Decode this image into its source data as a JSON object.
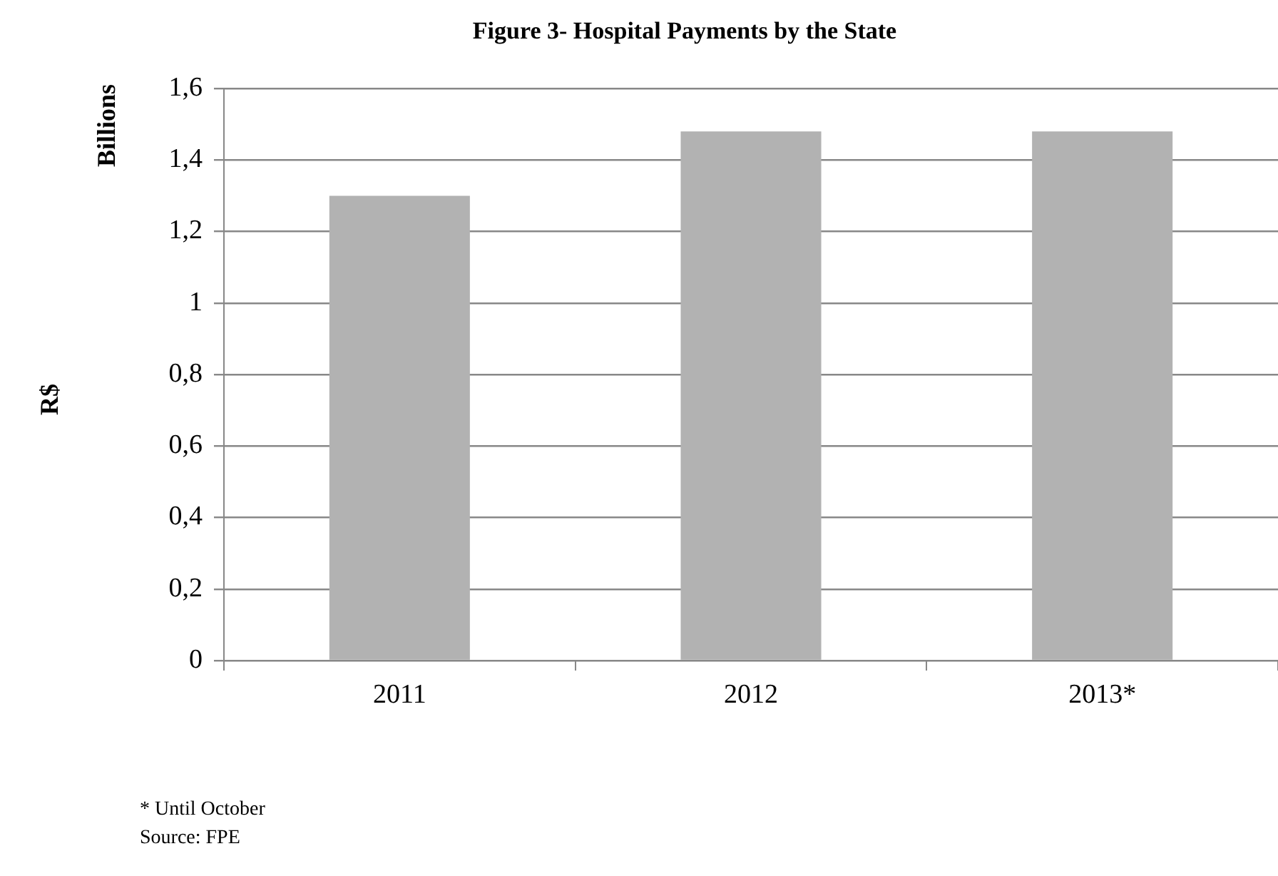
{
  "chart_data": {
    "type": "bar",
    "title": "Figure 3- Hospital Payments by the State",
    "ylabel": "R$",
    "annotations": [
      "Billions",
      "* Until October",
      "Source: FPE"
    ],
    "categories": [
      "2011",
      "2012",
      "2013*"
    ],
    "values": [
      1.3,
      1.48,
      1.48
    ],
    "color": "#b2b2b2",
    "ylim": [
      0,
      1.6
    ],
    "yticks": [
      0,
      {
        "value": 0.2,
        "label": "0,2"
      },
      {
        "value": 0.4,
        "label": "0,4"
      },
      {
        "value": 0.6,
        "label": "0,6"
      },
      {
        "value": 0.8,
        "label": "0,8"
      },
      1,
      {
        "value": 1.2,
        "label": "1,2"
      },
      {
        "value": 1.4,
        "label": "1,4"
      },
      {
        "value": 1.6,
        "label": "1,6"
      }
    ],
    "grid": "y",
    "legend": false
  }
}
